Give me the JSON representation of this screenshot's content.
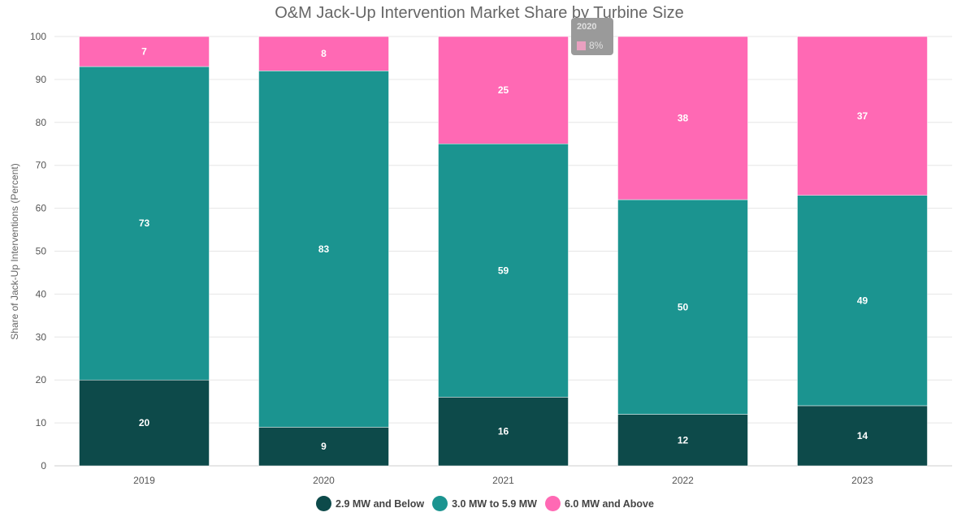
{
  "chart_data": {
    "type": "bar",
    "stacked": true,
    "title": "O&M Jack-Up Intervention Market Share by Turbine Size",
    "xlabel": "",
    "ylabel": "Share of Jack-Up Interventions (Percent)",
    "ylim": [
      0,
      100
    ],
    "yticks": [
      0,
      10,
      20,
      30,
      40,
      50,
      60,
      70,
      80,
      90,
      100
    ],
    "grid": true,
    "legend": "bottom",
    "categories": [
      "2019",
      "2020",
      "2021",
      "2022",
      "2023"
    ],
    "series": [
      {
        "name": "2.9 MW and Below",
        "color": "#0d4a4a",
        "values": [
          20,
          9,
          16,
          12,
          14
        ]
      },
      {
        "name": "3.0 MW to 5.9 MW",
        "color": "#1b9490",
        "values": [
          73,
          83,
          59,
          50,
          49
        ]
      },
      {
        "name": "6.0 MW and Above",
        "color": "#ff69b4",
        "values": [
          7,
          8,
          25,
          38,
          37
        ]
      }
    ],
    "tooltip": {
      "category": "2020",
      "value": "8%"
    }
  }
}
